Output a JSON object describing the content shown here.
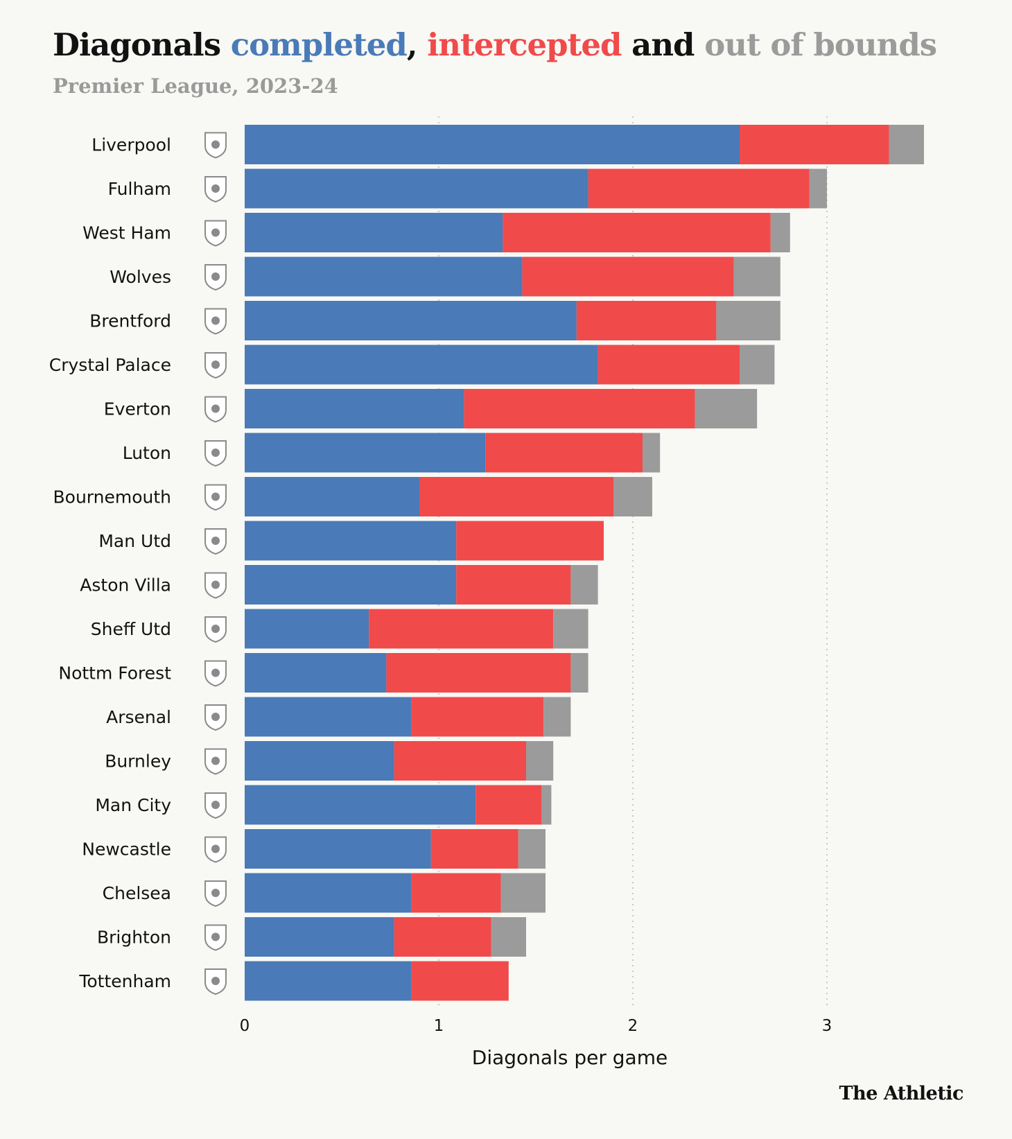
{
  "title": {
    "part1": "Diagonals ",
    "completed": "completed",
    "sep": ", ",
    "intercepted": "intercepted",
    "and": " and ",
    "out": "out of bounds"
  },
  "subtitle": "Premier League, 2023-24",
  "brand": "The Athletic",
  "colors": {
    "completed": "#4a7ab7",
    "intercepted": "#f04a4b",
    "out_of_bounds": "#9b9b9b",
    "title_dark": "#121212",
    "subtitle_gray": "#9a9a9a"
  },
  "chart_data": {
    "type": "bar",
    "orientation": "horizontal",
    "stacked": true,
    "categories": [
      "Liverpool",
      "Fulham",
      "West Ham",
      "Wolves",
      "Brentford",
      "Crystal Palace",
      "Everton",
      "Luton",
      "Bournemouth",
      "Man Utd",
      "Aston Villa",
      "Sheff Utd",
      "Nottm Forest",
      "Arsenal",
      "Burnley",
      "Man City",
      "Newcastle",
      "Chelsea",
      "Brighton",
      "Tottenham"
    ],
    "category_icons": [
      "liverpool-crest-icon",
      "fulham-crest-icon",
      "west-ham-crest-icon",
      "wolves-crest-icon",
      "brentford-crest-icon",
      "crystal-palace-crest-icon",
      "everton-crest-icon",
      "luton-crest-icon",
      "bournemouth-crest-icon",
      "man-utd-crest-icon",
      "aston-villa-crest-icon",
      "sheff-utd-crest-icon",
      "nottm-forest-crest-icon",
      "arsenal-crest-icon",
      "burnley-crest-icon",
      "man-city-crest-icon",
      "newcastle-crest-icon",
      "chelsea-crest-icon",
      "brighton-crest-icon",
      "tottenham-crest-icon"
    ],
    "series": [
      {
        "name": "completed",
        "values": [
          2.55,
          1.77,
          1.33,
          1.43,
          1.71,
          1.82,
          1.13,
          1.24,
          0.9,
          1.09,
          1.09,
          0.64,
          0.73,
          0.86,
          0.77,
          1.19,
          0.96,
          0.86,
          0.77,
          0.86
        ]
      },
      {
        "name": "intercepted",
        "values": [
          0.77,
          1.14,
          1.38,
          1.09,
          0.72,
          0.73,
          1.19,
          0.81,
          1.0,
          0.76,
          0.59,
          0.95,
          0.95,
          0.68,
          0.68,
          0.34,
          0.45,
          0.46,
          0.5,
          0.5
        ]
      },
      {
        "name": "out of bounds",
        "values": [
          0.18,
          0.09,
          0.1,
          0.24,
          0.33,
          0.18,
          0.32,
          0.09,
          0.2,
          0.0,
          0.14,
          0.18,
          0.09,
          0.14,
          0.14,
          0.05,
          0.14,
          0.23,
          0.18,
          0.0
        ]
      }
    ],
    "x_ticks": [
      "0",
      "1",
      "2",
      "3"
    ],
    "xlim": [
      0,
      3.5
    ],
    "xlabel": "Diagonals per game",
    "grid": "vertical dotted"
  }
}
